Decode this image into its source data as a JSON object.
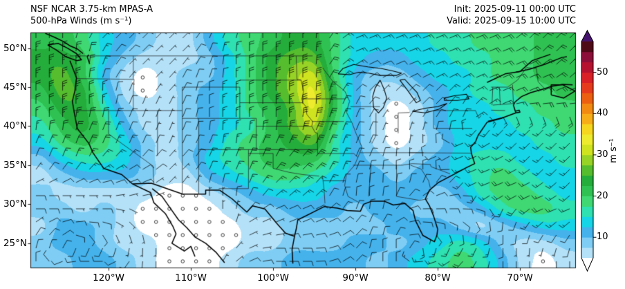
{
  "header": {
    "title_line1": "NSF NCAR 3.75-km MPAS-A",
    "title_line2": "500-hPa Winds (m s⁻¹)",
    "init_label": "Init: 2025-09-11 00:00 UTC",
    "valid_label": "Valid: 2025-09-15 10:00 UTC"
  },
  "chart_data": {
    "type": "heatmap",
    "title": "NSF NCAR 3.75-km MPAS-A 500-hPa Winds (m s⁻¹)",
    "extent": {
      "lon_west": 129.5,
      "lon_east": 63.2,
      "lat_north": 52.0,
      "lat_south": 21.8
    },
    "x_ticks": [
      {
        "lon": 120,
        "label": "120°W"
      },
      {
        "lon": 110,
        "label": "110°W"
      },
      {
        "lon": 100,
        "label": "100°W"
      },
      {
        "lon": 90,
        "label": "90°W"
      },
      {
        "lon": 80,
        "label": "80°W"
      },
      {
        "lon": 70,
        "label": "70°W"
      }
    ],
    "y_ticks": [
      {
        "lat": 50,
        "label": "50°N"
      },
      {
        "lat": 45,
        "label": "45°N"
      },
      {
        "lat": 40,
        "label": "40°N"
      },
      {
        "lat": 35,
        "label": "35°N"
      },
      {
        "lat": 30,
        "label": "30°N"
      },
      {
        "lat": 25,
        "label": "25°N"
      }
    ],
    "colorbar": {
      "min": 5,
      "max": 57.5,
      "step": 2.5,
      "ticks": [
        10,
        20,
        30,
        40,
        50
      ],
      "tick_labels": [
        "10",
        "20",
        "30",
        "40",
        "50"
      ],
      "unit_label": "m s⁻¹",
      "under_color": "#ffffff",
      "over_color": "#45136e",
      "colors": [
        "#b4e1f8",
        "#7fcdf4",
        "#45b2ec",
        "#16d5e6",
        "#2fe0b0",
        "#3fd873",
        "#2fc152",
        "#25ad3c",
        "#55bd2e",
        "#97d226",
        "#cfe31f",
        "#eeea2e",
        "#f6d61f",
        "#f7ad18",
        "#f28a12",
        "#ec5f10",
        "#e63a1d",
        "#d92027",
        "#b5122f",
        "#8c0f39",
        "#4e0a16"
      ]
    },
    "grid_cols": 26,
    "grid_rows": 14,
    "speed_bucket_size_ms": 2.5,
    "speed_min_ms": 5,
    "speed_grid": [
      "77643211356788644445566677",
      "88742111246899643344556677",
      "897310122468AB632234456677",
      "798410123468AC731123455667",
      "6885211234679C731013445566",
      "5786311234579B631013444556",
      "46764212356789531012444455",
      "24554212456777532123455445",
      "12333211345665433233456544",
      "21111100123444333332356654",
      "22121000012233323322235665",
      "13321000001122222333212344",
      "23321100001122233234542112",
      "22332100012233332345653101"
    ],
    "direction_grid_16pt": [
      "00122222110000233333333222",
      "00012222100000233333333322",
      "00012221100000223333333332",
      "00001121000000122222233333",
      "00001111000000112222123444",
      "0011111100000111111119AAAA",
      "11111111101111111100BBAAAA",
      "1112222211112211100ABBBAAA",
      "22233322111222110001BBBBAA",
      "444433210012221001234BBBBA",
      "44445680002333210244459ABB",
      "234567880033333213456889AA",
      "12888880013444320068998899",
      "0BCCA8800234443200CBA98888"
    ],
    "barb_full_ms": 10,
    "barb_half_ms": 5,
    "barb_pennant_ms": 50,
    "calm_threshold_ms": 2.5
  }
}
